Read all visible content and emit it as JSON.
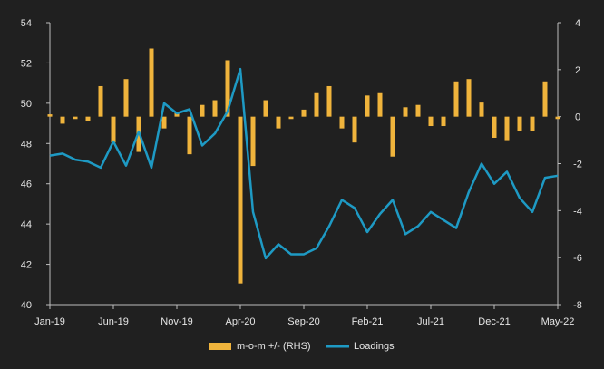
{
  "chart_data": {
    "type": "bar+line",
    "x_labels": [
      "Jan-19",
      "Jun-19",
      "Nov-19",
      "Apr-20",
      "Sep-20",
      "Feb-21",
      "Jul-21",
      "Dec-21",
      "May-22"
    ],
    "left_axis": {
      "ticks": [
        40,
        42,
        44,
        46,
        48,
        50,
        52,
        54
      ],
      "ylim": [
        40,
        54
      ]
    },
    "right_axis": {
      "ticks": [
        -8,
        -6,
        -4,
        -2,
        0,
        2,
        4
      ],
      "ylim": [
        -8,
        4
      ]
    },
    "months": [
      "Jan-19",
      "Feb-19",
      "Mar-19",
      "Apr-19",
      "May-19",
      "Jun-19",
      "Jul-19",
      "Aug-19",
      "Sep-19",
      "Oct-19",
      "Nov-19",
      "Dec-19",
      "Jan-20",
      "Feb-20",
      "Mar-20",
      "Apr-20",
      "May-20",
      "Jun-20",
      "Jul-20",
      "Aug-20",
      "Sep-20",
      "Oct-20",
      "Nov-20",
      "Dec-20",
      "Jan-21",
      "Feb-21",
      "Mar-21",
      "Apr-21",
      "May-21",
      "Jun-21",
      "Jul-21",
      "Aug-21",
      "Sep-21",
      "Oct-21",
      "Nov-21",
      "Dec-21",
      "Jan-22",
      "Feb-22",
      "Mar-22",
      "Apr-22",
      "May-22"
    ],
    "series": [
      {
        "name": "m-o-m +/- (RHS)",
        "type": "bar",
        "axis": "right",
        "color": "#f0b43c",
        "values": [
          0.1,
          -0.3,
          -0.1,
          -0.2,
          1.3,
          -1.1,
          1.6,
          -1.5,
          2.9,
          -0.5,
          0.2,
          -1.6,
          0.5,
          0.7,
          2.4,
          -7.1,
          -2.1,
          0.7,
          -0.5,
          -0.1,
          0.3,
          1.0,
          1.3,
          -0.5,
          -1.1,
          0.9,
          1.0,
          -1.7,
          0.4,
          0.5,
          -0.4,
          -0.4,
          1.5,
          1.6,
          0.6,
          -0.9,
          -1.0,
          -0.6,
          -0.6,
          1.5,
          -0.1
        ]
      },
      {
        "name": "Loadings",
        "type": "line",
        "axis": "left",
        "color": "#1e9ac4",
        "values": [
          47.4,
          47.5,
          47.2,
          47.1,
          46.8,
          48.1,
          46.9,
          48.6,
          46.8,
          50.0,
          49.5,
          49.7,
          47.9,
          48.5,
          49.6,
          51.7,
          44.6,
          42.3,
          43.0,
          42.5,
          42.5,
          42.8,
          43.9,
          45.2,
          44.8,
          43.6,
          44.5,
          45.2,
          43.5,
          43.9,
          44.6,
          44.2,
          43.8,
          45.6,
          47.0,
          46.0,
          46.6,
          45.3,
          44.6,
          46.3,
          46.4
        ]
      }
    ],
    "legend_position": "bottom-center",
    "grid": false
  }
}
